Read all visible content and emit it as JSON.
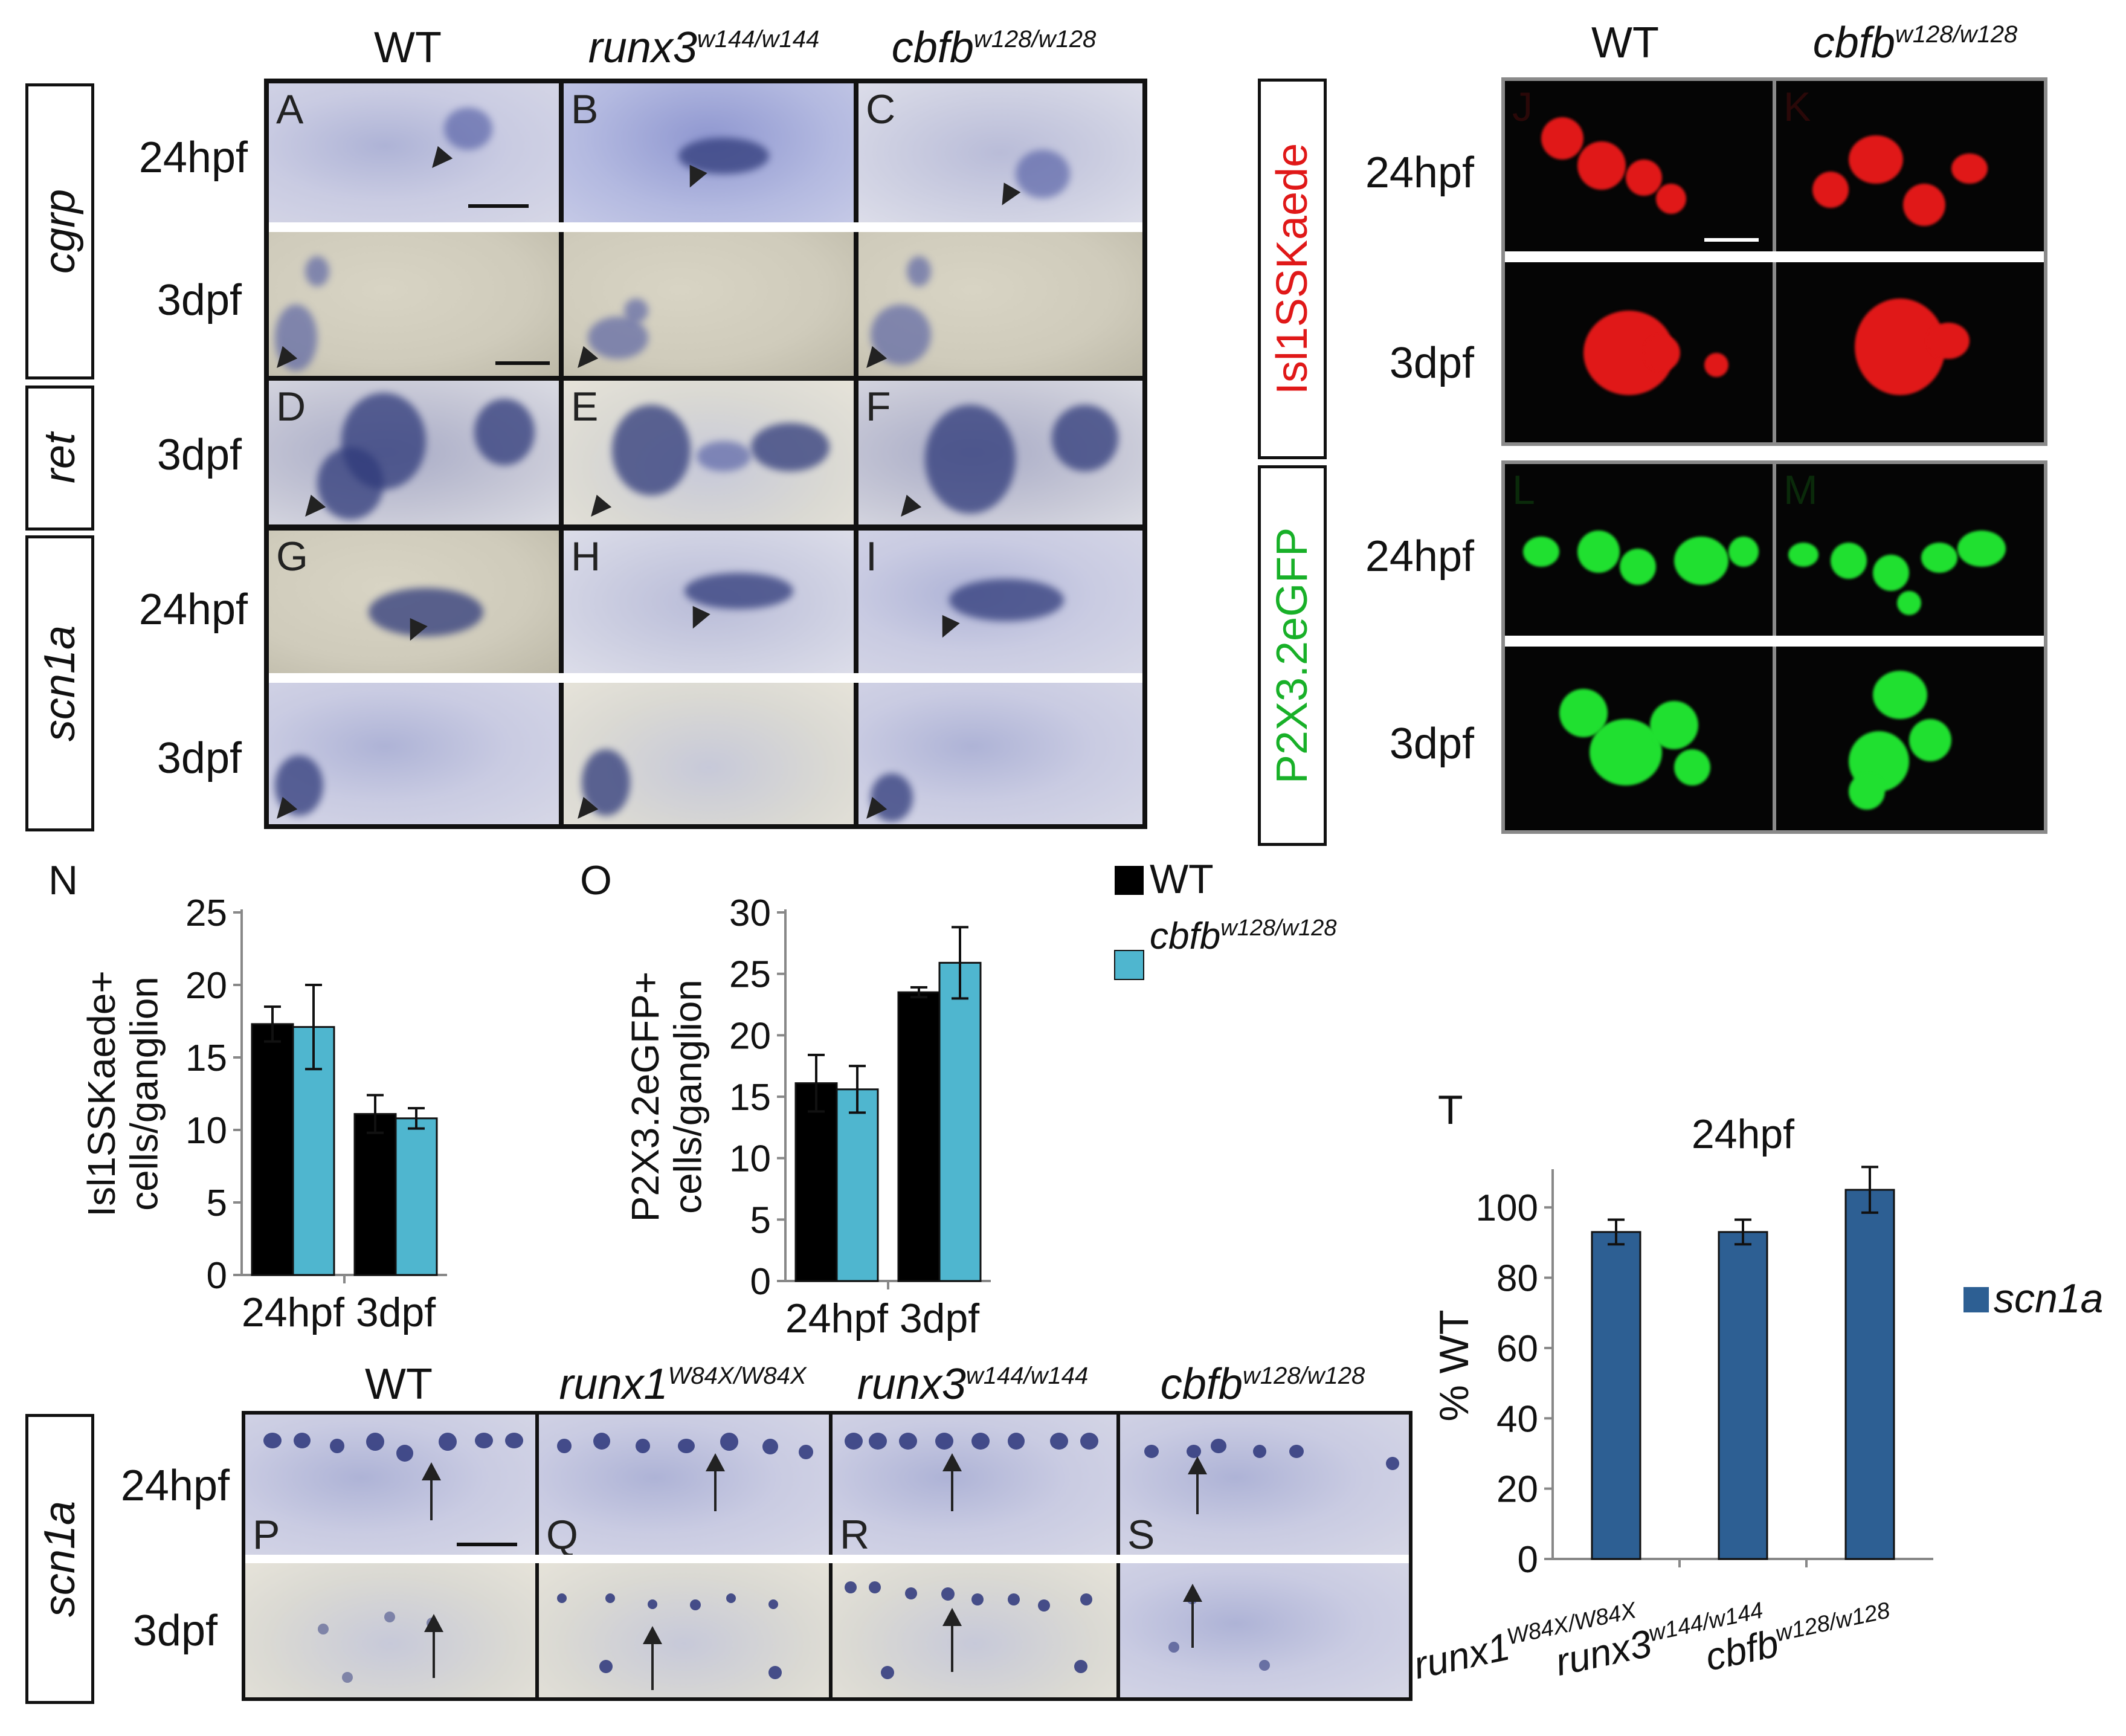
{
  "top_headers": {
    "wt": "WT",
    "runx3": {
      "base": "runx3",
      "sup": "w144/w144"
    },
    "cbfb": {
      "base": "cbfb",
      "sup": "w128/w128"
    },
    "fluo_wt": "WT",
    "fluo_cbfb": {
      "base": "cbfb",
      "sup": "w128/w128"
    }
  },
  "genes": {
    "cgrp": "cgrp",
    "ret": "ret",
    "scn1a": "scn1a",
    "scn1a_bottom": "scn1a"
  },
  "reporters": {
    "isl": "Isl1SSKaede",
    "p2x": "P2X3.2eGFP"
  },
  "stages": {
    "h24": "24hpf",
    "d3": "3dpf"
  },
  "panel_letters": [
    "A",
    "B",
    "C",
    "D",
    "E",
    "F",
    "G",
    "H",
    "I",
    "J",
    "K",
    "L",
    "M",
    "N",
    "O",
    "P",
    "Q",
    "R",
    "S",
    "T"
  ],
  "bottom_headers": {
    "wt": "WT",
    "runx1": {
      "base": "runx1",
      "sup": "W84X/W84X"
    },
    "runx3": {
      "base": "runx3",
      "sup": "w144/w144"
    },
    "cbfb": {
      "base": "cbfb",
      "sup": "w128/w128"
    }
  },
  "colors": {
    "wt_bar": "#000000",
    "cbfb_bar": "#4fb6cf",
    "scn1a_bar": "#2d5f93",
    "kaede": "#e01818",
    "gfp": "#20c030"
  },
  "chart_data": [
    {
      "id": "N",
      "type": "bar",
      "ylabel": [
        "Isl1SSKaede+",
        "cells/ganglion"
      ],
      "categories": [
        "24hpf",
        "3dpf"
      ],
      "ylim": [
        0,
        25
      ],
      "yticks": [
        0,
        5,
        10,
        15,
        20,
        25
      ],
      "series": [
        {
          "name": "WT",
          "color": "#000000",
          "values": [
            17.3,
            11.1
          ],
          "errors": [
            1.2,
            1.3
          ]
        },
        {
          "name": "cbfb",
          "color": "#4fb6cf",
          "values": [
            17.1,
            10.8
          ],
          "errors": [
            2.9,
            0.7
          ]
        }
      ]
    },
    {
      "id": "O",
      "type": "bar",
      "ylabel": [
        "P2X3.2eGFP+",
        "cells/ganglion"
      ],
      "categories": [
        "24hpf",
        "3dpf"
      ],
      "ylim": [
        0,
        30
      ],
      "yticks": [
        0,
        5,
        10,
        15,
        20,
        25,
        30
      ],
      "series": [
        {
          "name": "WT",
          "color": "#000000",
          "values": [
            16.1,
            23.5
          ],
          "errors": [
            2.3,
            0.4
          ]
        },
        {
          "name": "cbfb",
          "color": "#4fb6cf",
          "values": [
            15.6,
            25.9
          ],
          "errors": [
            1.9,
            2.9
          ]
        }
      ],
      "legend": {
        "wt": "WT",
        "cbfb": {
          "base": "cbfb",
          "sup": "w128/w128"
        }
      }
    },
    {
      "id": "T",
      "type": "bar",
      "title": "24hpf",
      "ylabel": "% WT",
      "categories": [
        {
          "base": "runx1",
          "sup": "W84X/W84X"
        },
        {
          "base": "runx3",
          "sup": "w144/w144"
        },
        {
          "base": "cbfb",
          "sup": "w128/w128"
        }
      ],
      "ylim": [
        0,
        110
      ],
      "yticks": [
        0,
        20,
        40,
        60,
        80,
        100
      ],
      "series": [
        {
          "name": "scn1a",
          "color": "#2d5f93",
          "values": [
            93,
            93,
            105
          ],
          "errors": [
            3.5,
            3.5,
            6.5
          ]
        }
      ],
      "legend_label": "scn1a"
    }
  ]
}
